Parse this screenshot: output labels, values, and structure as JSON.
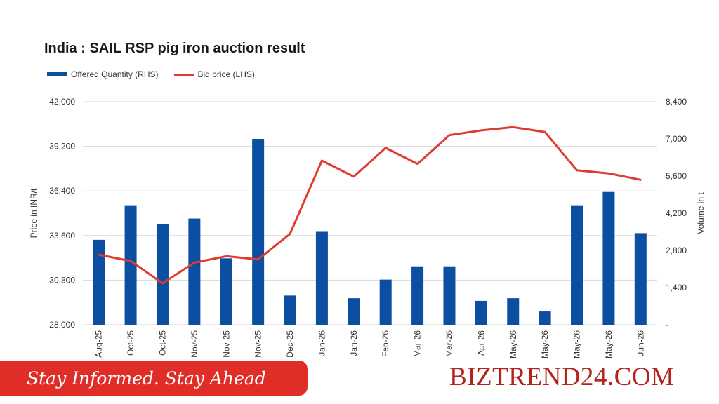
{
  "chart_data": {
    "type": "bar+line",
    "title": "India : SAIL RSP pig iron auction result",
    "categories": [
      "Aug-25",
      "Oct-25",
      "Oct-25",
      "Nov-25",
      "Nov-25",
      "Nov-25",
      "Dec-25",
      "Jan-26",
      "Jan-26",
      "Feb-26",
      "Mar-26",
      "Mar-26",
      "Apr-26",
      "May-26",
      "May-26",
      "May-26",
      "May-26",
      "Jun-26"
    ],
    "series": [
      {
        "name": "Offered Quantity (RHS)",
        "type": "bar",
        "axis": "right",
        "color": "#0b4ea2",
        "values": [
          3200,
          4500,
          3800,
          4000,
          2500,
          7000,
          1100,
          3500,
          1000,
          1700,
          2200,
          2200,
          900,
          1000,
          500,
          4500,
          5000,
          3450
        ]
      },
      {
        "name": "Bid price (LHS)",
        "type": "line",
        "axis": "left",
        "color": "#e03b30",
        "values": [
          32400,
          32000,
          30600,
          31900,
          32300,
          32100,
          33700,
          38300,
          37300,
          39100,
          38100,
          39900,
          40200,
          40400,
          40100,
          37700,
          37500,
          37100
        ]
      }
    ],
    "ylabel": "Price in INR/t",
    "y2label": "Volume in t",
    "ylim": [
      28000,
      42000
    ],
    "y2lim": [
      0,
      8400
    ],
    "yticks": [
      "42,000",
      "39,200",
      "36,400",
      "33,600",
      "30,800",
      "28,000"
    ],
    "y2ticks": [
      "8,400",
      "7,000",
      "5,600",
      "4,200",
      "2,800",
      "1,400",
      "-"
    ],
    "legend": "top-left",
    "grid": true
  },
  "banner": {
    "tagline": "Stay Informed. Stay Ahead",
    "brand": "BIZTREND24.COM"
  }
}
